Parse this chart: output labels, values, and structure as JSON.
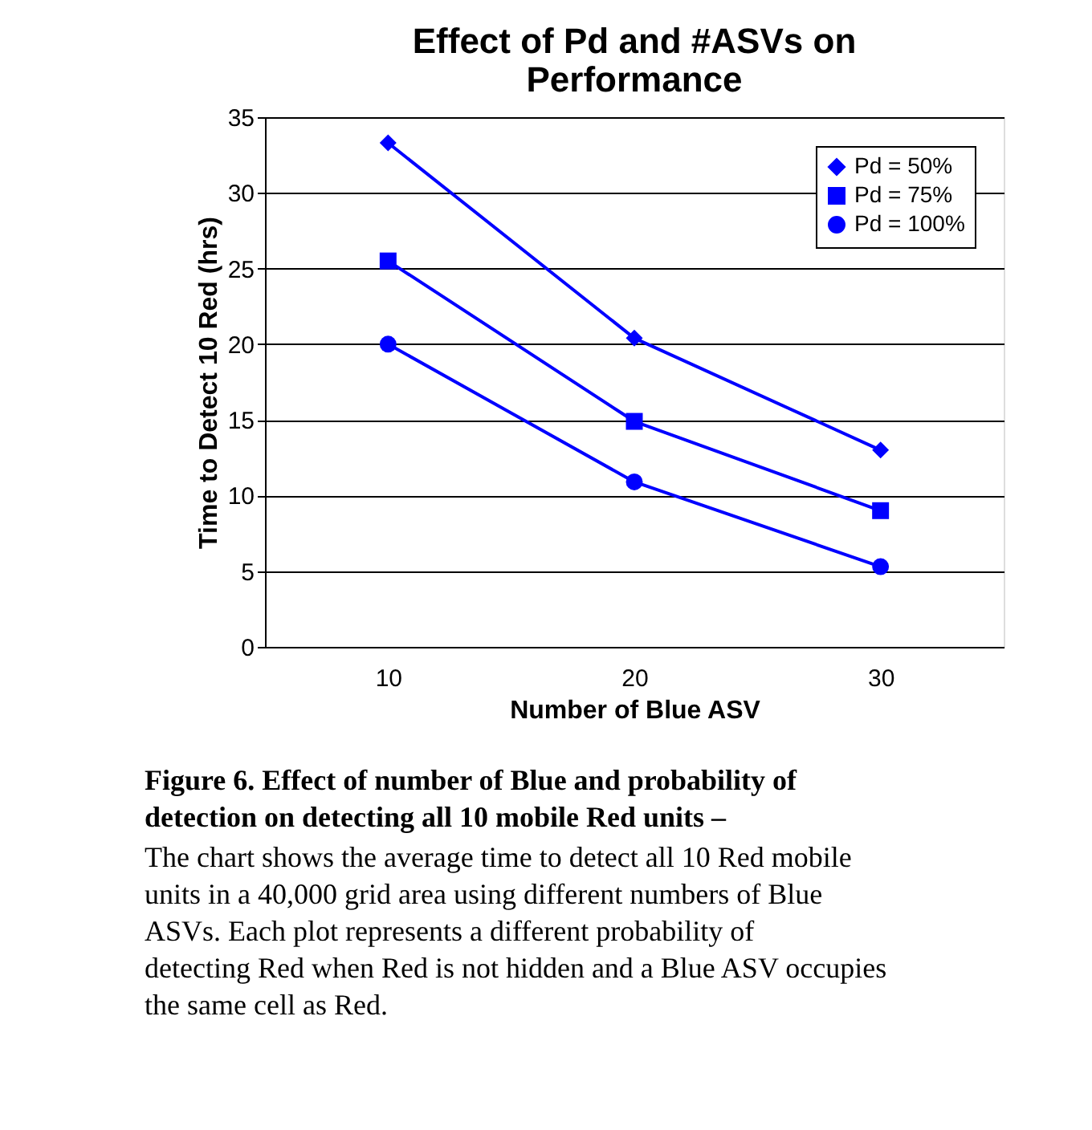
{
  "chart_data": {
    "type": "line",
    "title": "Effect of Pd and #ASVs on Performance",
    "xlabel": "Number of Blue ASV",
    "ylabel": "Time to Detect 10 Red (hrs)",
    "categories": [
      "10",
      "20",
      "30"
    ],
    "series": [
      {
        "name": "Pd = 50%",
        "color": "#0000ff",
        "marker": "diamond",
        "values": [
          33.3,
          20.4,
          13.0
        ]
      },
      {
        "name": "Pd = 75%",
        "color": "#0000ff",
        "marker": "square",
        "values": [
          25.5,
          14.9,
          9.0
        ]
      },
      {
        "name": "Pd = 100%",
        "color": "#0000ff",
        "marker": "circle",
        "values": [
          20.0,
          10.9,
          5.3
        ]
      }
    ],
    "ylim": [
      0,
      35
    ],
    "yticks": [
      0,
      5,
      10,
      15,
      20,
      25,
      30,
      35
    ],
    "grid": "y",
    "legend": "top right",
    "line_style": "solid",
    "annotations": [
      "Figure 6. Effect of number of Blue and probability of detection on detecting all 10 mobile Red units –",
      "The chart shows the average time to detect all 10 Red mobile units in a 40,000 grid area using different numbers of Blue ASVs. Each plot represents a different probability of detecting Red when Red is not hidden and a Blue ASV occupies the same cell as Red."
    ]
  }
}
